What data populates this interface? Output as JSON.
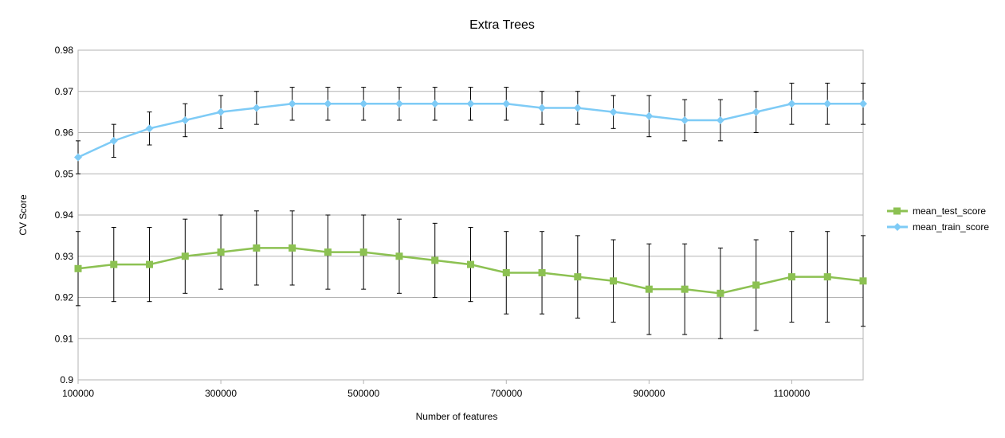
{
  "chart_data": {
    "type": "line",
    "title": "Extra Trees",
    "xlabel": "Number of features",
    "ylabel": "CV Score",
    "xlim": [
      100000,
      1200000
    ],
    "ylim": [
      0.9,
      0.98
    ],
    "x_ticks": [
      100000,
      300000,
      500000,
      700000,
      900000,
      1100000
    ],
    "x_tick_labels": [
      "100000",
      "300000",
      "500000",
      "700000",
      "900000",
      "1100000"
    ],
    "y_ticks": [
      0.9,
      0.91,
      0.92,
      0.93,
      0.94,
      0.95,
      0.96,
      0.97,
      0.98
    ],
    "y_tick_labels": [
      "0.9",
      "0.91",
      "0.92",
      "0.93",
      "0.94",
      "0.95",
      "0.96",
      "0.97",
      "0.98"
    ],
    "grid": true,
    "legend_position": "right",
    "error_bars": true,
    "x": [
      100000,
      150000,
      200000,
      250000,
      300000,
      350000,
      400000,
      450000,
      500000,
      550000,
      600000,
      650000,
      700000,
      750000,
      800000,
      850000,
      900000,
      950000,
      1000000,
      1050000,
      1100000,
      1150000,
      1200000
    ],
    "series": [
      {
        "name": "mean_test_score",
        "color": "#8cc152",
        "marker": "square",
        "values": [
          0.927,
          0.928,
          0.928,
          0.93,
          0.931,
          0.932,
          0.932,
          0.931,
          0.931,
          0.93,
          0.929,
          0.928,
          0.926,
          0.926,
          0.925,
          0.924,
          0.922,
          0.922,
          0.921,
          0.923,
          0.925,
          0.925,
          0.924
        ],
        "error": [
          0.009,
          0.009,
          0.009,
          0.009,
          0.009,
          0.009,
          0.009,
          0.009,
          0.009,
          0.009,
          0.009,
          0.009,
          0.01,
          0.01,
          0.01,
          0.01,
          0.011,
          0.011,
          0.011,
          0.011,
          0.011,
          0.011,
          0.011
        ]
      },
      {
        "name": "mean_train_score",
        "color": "#7ecbf6",
        "marker": "diamond",
        "values": [
          0.954,
          0.958,
          0.961,
          0.963,
          0.965,
          0.966,
          0.967,
          0.967,
          0.967,
          0.967,
          0.967,
          0.967,
          0.967,
          0.966,
          0.966,
          0.965,
          0.964,
          0.963,
          0.963,
          0.965,
          0.967,
          0.967,
          0.967
        ],
        "error": [
          0.004,
          0.004,
          0.004,
          0.004,
          0.004,
          0.004,
          0.004,
          0.004,
          0.004,
          0.004,
          0.004,
          0.004,
          0.004,
          0.004,
          0.004,
          0.004,
          0.005,
          0.005,
          0.005,
          0.005,
          0.005,
          0.005,
          0.005
        ]
      }
    ]
  }
}
